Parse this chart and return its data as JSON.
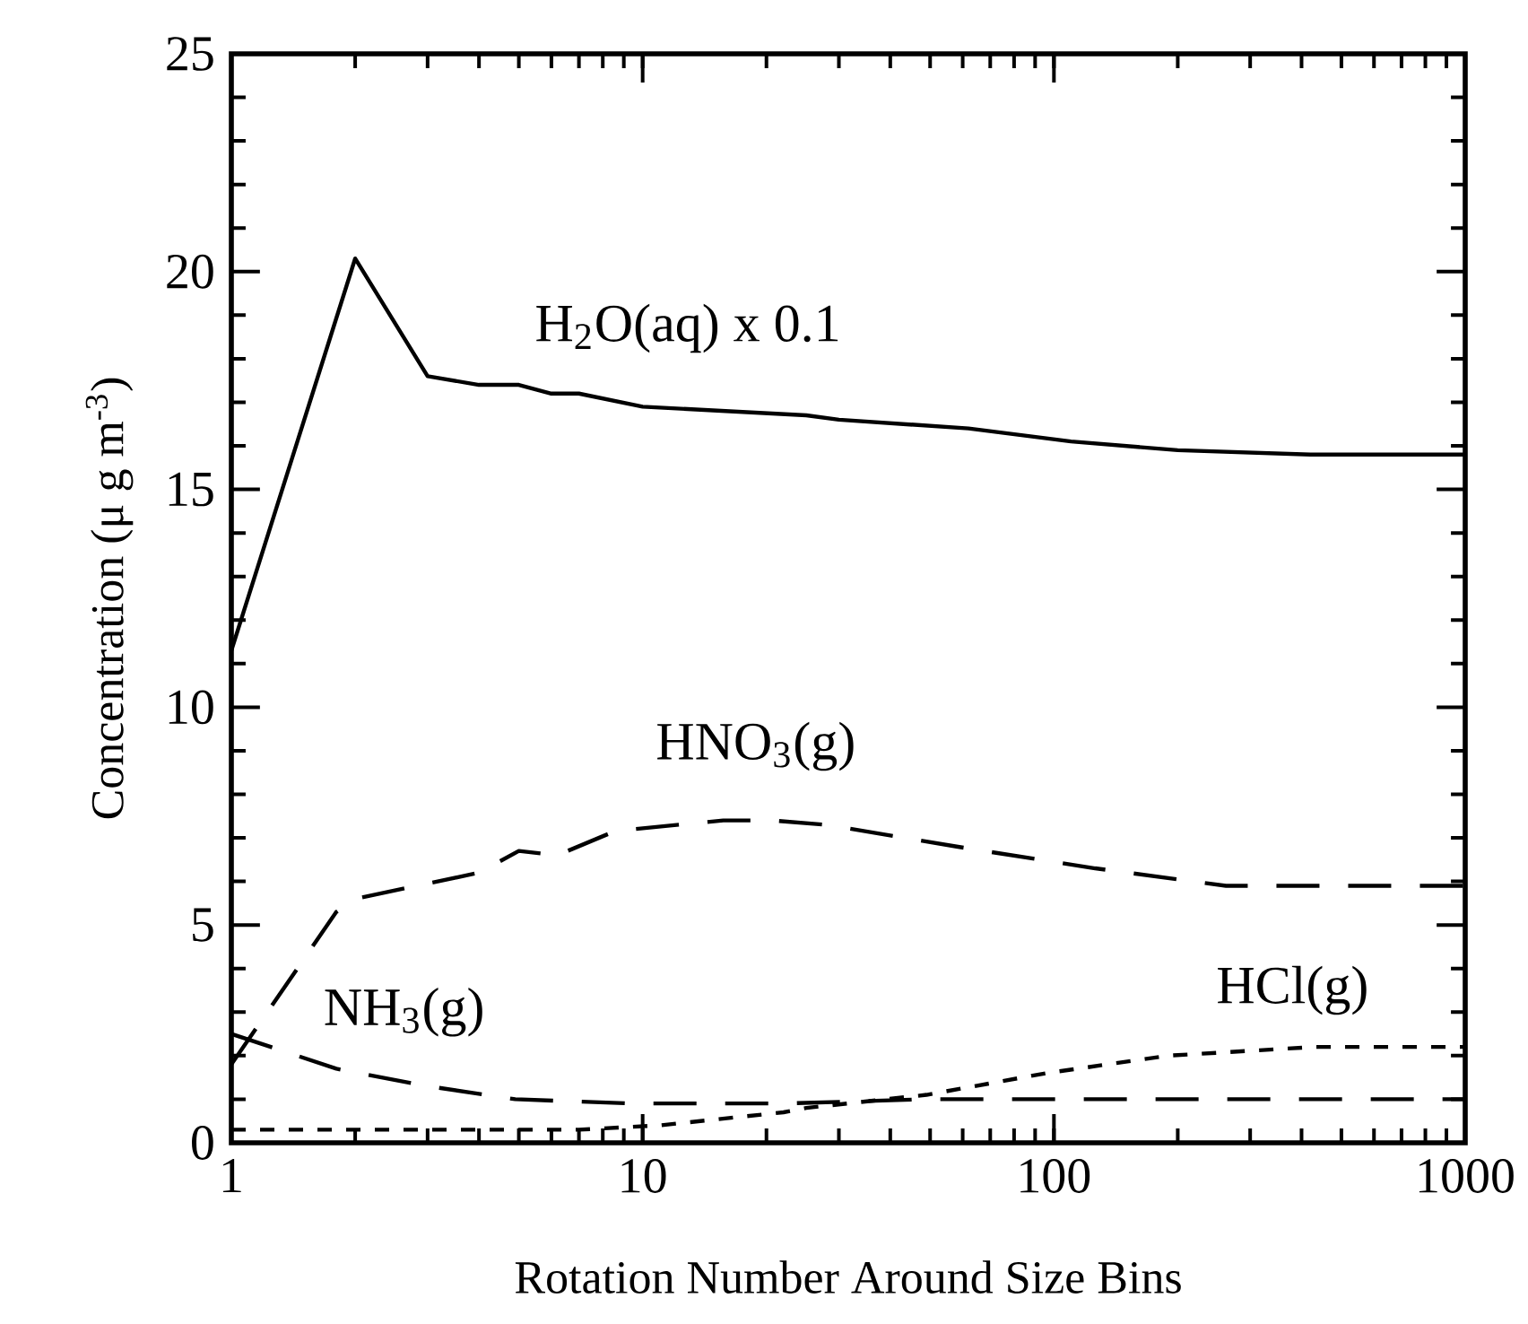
{
  "chart_data": {
    "type": "line",
    "xlabel": "Rotation Number Around Size Bins",
    "ylabel": "Concentration (μ g m$^{-3}$)",
    "log": "x",
    "xlim": [
      1,
      1000
    ],
    "xticks": [
      1,
      10,
      100,
      1000
    ],
    "ylim": [
      0,
      25
    ],
    "yticks": [
      0,
      5,
      10,
      15,
      20,
      25
    ],
    "series": [
      {
        "color": "#000000",
        "line_style": "solid",
        "x": [
          1,
          2,
          3,
          4,
          5,
          6,
          7,
          10,
          25,
          30,
          62,
          110,
          200,
          420,
          1000
        ],
        "values": [
          11.3,
          20.3,
          17.6,
          17.4,
          17.4,
          17.2,
          17.2,
          16.9,
          16.7,
          16.6,
          16.4,
          16.1,
          15.9,
          15.8,
          15.8
        ]
      },
      {
        "color": "#000000",
        "line_style": "dashed",
        "x": [
          1,
          1.8,
          2,
          4,
          5,
          6.2,
          8.3,
          9.5,
          15.7,
          20.6,
          28,
          58,
          126,
          262,
          570,
          1000
        ],
        "values": [
          1.8,
          5.3,
          5.6,
          6.2,
          6.7,
          6.6,
          7.1,
          7.2,
          7.4,
          7.4,
          7.3,
          6.8,
          6.3,
          5.9,
          5.9,
          5.9
        ]
      },
      {
        "color": "#000000",
        "line_style": "dashed",
        "x": [
          1,
          1.8,
          3,
          4.9,
          9.5,
          22,
          49,
          70,
          1000
        ],
        "values": [
          2.5,
          1.7,
          1.3,
          1.0,
          0.9,
          0.9,
          1.0,
          1.0,
          1.0
        ]
      },
      {
        "color": "#000000",
        "line_style": "dotted",
        "x": [
          1,
          7,
          11,
          22,
          25,
          49,
          96,
          190,
          430,
          1000
        ],
        "values": [
          0.3,
          0.3,
          0.4,
          0.7,
          0.8,
          1.1,
          1.6,
          2.0,
          2.2,
          2.2
        ]
      }
    ],
    "annotations": [
      "H$_{2}$O(aq) x 0.1",
      "HNO$_{3}$(g)",
      "NH$_{3}$(g)",
      "HCl(g)"
    ]
  }
}
